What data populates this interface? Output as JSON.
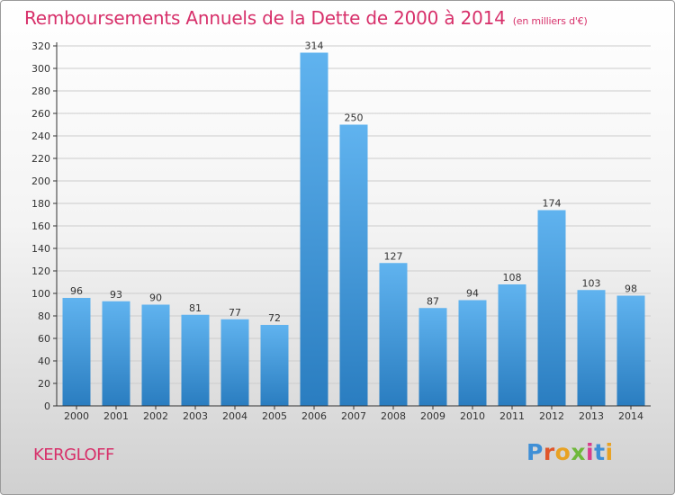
{
  "header": {
    "title": "Remboursements Annuels de la Dette de 2000 à 2014",
    "unit": "(en milliers d'€)"
  },
  "footer": {
    "commune": "KERGLOFF",
    "brand": "Proxiti"
  },
  "colors": {
    "title": "#d7306a",
    "bar_light": "#60b3ef",
    "bar_dark": "#2a7dc0",
    "grid": "#cccccc",
    "axis": "#333333",
    "brand_letters": [
      "#3f8fd6",
      "#e0562a",
      "#e8a223",
      "#6fb83a",
      "#d83c8c",
      "#3f8fd6",
      "#e8a223"
    ]
  },
  "chart_data": {
    "type": "bar",
    "title": "Remboursements Annuels de la Dette de 2000 à 2014",
    "subtitle": "(en milliers d'€)",
    "categories": [
      "2000",
      "2001",
      "2002",
      "2003",
      "2004",
      "2005",
      "2006",
      "2007",
      "2008",
      "2009",
      "2010",
      "2011",
      "2012",
      "2013",
      "2014"
    ],
    "values": [
      96,
      93,
      90,
      81,
      77,
      72,
      314,
      250,
      127,
      87,
      94,
      108,
      174,
      103,
      98
    ],
    "ylim": [
      0,
      320
    ],
    "ytick_step": 20,
    "grid": true,
    "legend": "none"
  }
}
